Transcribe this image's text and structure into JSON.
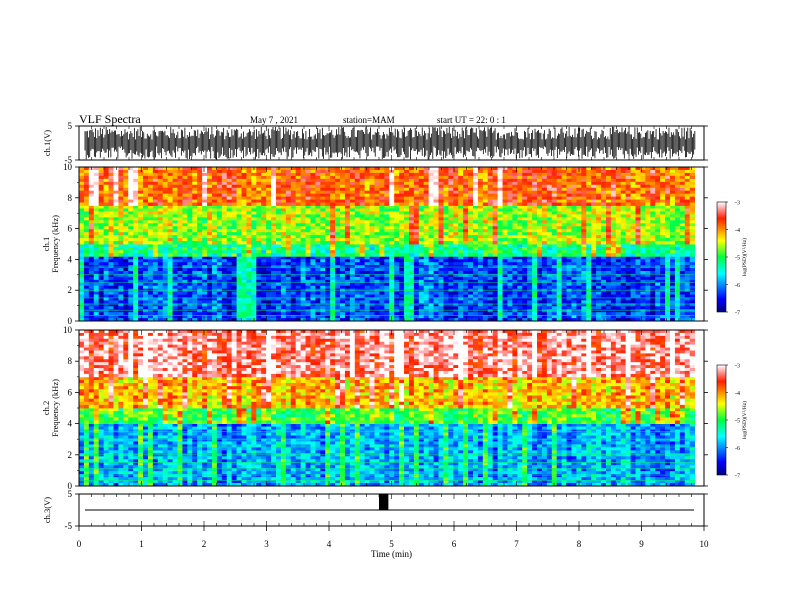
{
  "header": {
    "title": "VLF Spectra",
    "date": "May 7 , 2021",
    "station": "station=MAM",
    "start_time": "start UT = 22: 0 : 1"
  },
  "chart_data": [
    {
      "type": "line",
      "panel": "ch1-waveform",
      "ylabel": "ch.1(V)",
      "ylim": [
        -5,
        5
      ],
      "yticks": [
        "5",
        "-5"
      ],
      "xlim": [
        0,
        10
      ],
      "description_series": [
        {
          "values_range": [
            -5,
            5
          ]
        }
      ]
    },
    {
      "type": "heatmap",
      "panel": "ch1-spectrogram",
      "ylabel": "ch.1 Frequency (kHz)",
      "ylim": [
        0,
        10
      ],
      "yticks": [
        "0",
        "2",
        "4",
        "6",
        "8",
        "10"
      ],
      "xlim": [
        0,
        10
      ],
      "colorbar": {
        "label": "log(PSD)(V²/Hz)",
        "range": [
          -7,
          -3
        ],
        "ticks": [
          "-3",
          "-4",
          "-5",
          "-6",
          "-7"
        ]
      },
      "bands": [
        {
          "f_from": 0,
          "f_to": 4.2,
          "level": -6.3
        },
        {
          "f_from": 4.2,
          "f_to": 5.0,
          "level": -5.2
        },
        {
          "f_from": 5.0,
          "f_to": 7.5,
          "level": -4.6
        },
        {
          "f_from": 7.5,
          "f_to": 10,
          "level": -3.8
        }
      ]
    },
    {
      "type": "heatmap",
      "panel": "ch2-spectrogram",
      "ylabel": "ch.2 Frequency (kHz)",
      "ylim": [
        0,
        10
      ],
      "yticks": [
        "0",
        "2",
        "4",
        "6",
        "8",
        "10"
      ],
      "xlim": [
        0,
        10
      ],
      "colorbar": {
        "label": "log(PSD)(V²/Hz)",
        "range": [
          -7,
          -3
        ],
        "ticks": [
          "-3",
          "-4",
          "-5",
          "-6",
          "-7"
        ]
      },
      "bands": [
        {
          "f_from": 0,
          "f_to": 4.0,
          "level": -5.9
        },
        {
          "f_from": 4.0,
          "f_to": 5.0,
          "level": -4.9
        },
        {
          "f_from": 5.0,
          "f_to": 7.0,
          "level": -4.2
        },
        {
          "f_from": 7.0,
          "f_to": 10,
          "level": -3.3
        }
      ]
    },
    {
      "type": "line",
      "panel": "ch3-waveform",
      "ylabel": "ch.3(V)",
      "ylim": [
        -5,
        5
      ],
      "yticks": [
        "5",
        "-5"
      ],
      "xlim": [
        0,
        10
      ],
      "baseline": 0,
      "pulse": {
        "x_from": 4.8,
        "x_to": 4.95,
        "y_from": 0,
        "y_to": 5
      }
    }
  ],
  "x_axis": {
    "label": "Time (min)",
    "ticks": [
      "0",
      "1",
      "2",
      "3",
      "4",
      "5",
      "6",
      "7",
      "8",
      "9",
      "10"
    ]
  }
}
